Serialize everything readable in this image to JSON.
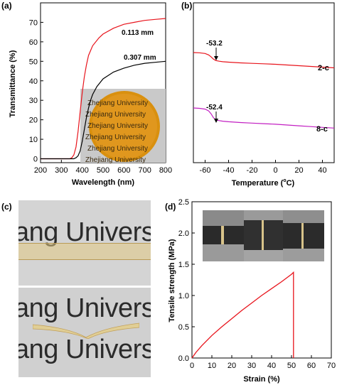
{
  "panels": {
    "a": {
      "label": "(a)",
      "xlabel": "Wavelength (nm)",
      "ylabel": "Transmittance (%)",
      "xticks": [
        "200",
        "300",
        "400",
        "500",
        "600",
        "700",
        "800"
      ],
      "yticks": [
        "0",
        "10",
        "20",
        "30",
        "40",
        "50",
        "60",
        "70"
      ],
      "series_labels": [
        "0.113 mm",
        "0.307 mm"
      ],
      "inset_text": [
        "Zhejiang University",
        "Zhejiang University",
        "Zhejiang University",
        "Zhejiang University",
        "Zhejiang University",
        "Zhejiang University"
      ]
    },
    "b": {
      "label": "(b)",
      "xlabel": "Temperature (",
      "xlabel_sup": "o",
      "xlabel_end": "C)",
      "xticks": [
        "-60",
        "-40",
        "-20",
        "0",
        "20",
        "40"
      ],
      "annotations": [
        "-53.2",
        "-52.4"
      ],
      "series_labels": [
        "2-c",
        "8-c"
      ]
    },
    "c": {
      "label": "(c)",
      "photo_text": [
        "ang Univers",
        "ang Univers",
        "ang Univers"
      ]
    },
    "d": {
      "label": "(d)",
      "xlabel": "Strain (%)",
      "ylabel": "Tensile strength (MPa)",
      "xticks": [
        "0",
        "10",
        "20",
        "30",
        "40",
        "50",
        "60",
        "70"
      ],
      "yticks": [
        "0.0",
        "0.5",
        "1.0",
        "1.5",
        "2.0",
        "2.5"
      ]
    }
  },
  "colors": {
    "red": "#e8141c",
    "black": "#000000",
    "magenta": "#c21fc2",
    "inset_amber": "#d9900f"
  },
  "chart_data": [
    {
      "type": "line",
      "panel": "a",
      "xlabel": "Wavelength (nm)",
      "ylabel": "Transmittance (%)",
      "xlim": [
        200,
        800
      ],
      "ylim": [
        -2,
        80
      ],
      "series": [
        {
          "name": "0.113 mm",
          "color": "#e8141c",
          "x": [
            200,
            340,
            350,
            360,
            370,
            380,
            390,
            400,
            410,
            420,
            430,
            450,
            480,
            500,
            550,
            600,
            650,
            700,
            750,
            800
          ],
          "y": [
            0,
            0,
            0.5,
            2,
            6,
            14,
            24,
            34,
            42,
            48,
            53,
            58,
            62,
            64,
            67,
            69,
            70,
            71,
            71.5,
            72
          ]
        },
        {
          "name": "0.307 mm",
          "color": "#000000",
          "x": [
            200,
            360,
            370,
            380,
            390,
            400,
            410,
            420,
            430,
            440,
            450,
            470,
            500,
            550,
            600,
            650,
            700,
            750,
            800
          ],
          "y": [
            0,
            0,
            0.5,
            1.5,
            4,
            9,
            15,
            21,
            26,
            30,
            33,
            37,
            41,
            44.5,
            46.5,
            48,
            49,
            49.5,
            50
          ]
        }
      ]
    },
    {
      "type": "line",
      "panel": "b",
      "xlabel": "Temperature (oC)",
      "xlim": [
        -70,
        50
      ],
      "annotations": [
        {
          "text": "-53.2",
          "x": -53.2,
          "series": "2-c"
        },
        {
          "text": "-52.4",
          "x": -52.4,
          "series": "8-c"
        }
      ],
      "series": [
        {
          "name": "2-c",
          "color": "#e8141c",
          "x": [
            -70,
            -65,
            -60,
            -57,
            -55,
            -53,
            -51,
            -48,
            -45,
            -40,
            -30,
            -20,
            -10,
            0,
            10,
            20,
            30,
            40,
            50
          ],
          "y": [
            0,
            -0.1,
            -0.4,
            -1.0,
            -1.8,
            -2.8,
            -3.4,
            -3.7,
            -3.9,
            -4.1,
            -4.4,
            -4.6,
            -4.8,
            -5.0,
            -5.3,
            -5.6,
            -5.9,
            -6.2,
            -6.5
          ]
        },
        {
          "name": "8-c",
          "color": "#c21fc2",
          "x": [
            -70,
            -65,
            -60,
            -57,
            -55,
            -53,
            -51,
            -48,
            -45,
            -40,
            -30,
            -20,
            -10,
            0,
            10,
            20,
            30,
            40,
            50
          ],
          "y": [
            -30,
            -30.2,
            -30.6,
            -31.5,
            -33.0,
            -35.0,
            -36.2,
            -36.6,
            -36.9,
            -37.2,
            -37.6,
            -37.9,
            -38.2,
            -38.5,
            -38.9,
            -39.3,
            -39.7,
            -40.1,
            -40.5
          ]
        }
      ]
    },
    {
      "type": "line",
      "panel": "d",
      "xlabel": "Strain (%)",
      "ylabel": "Tensile strength (MPa)",
      "xlim": [
        0,
        70
      ],
      "ylim": [
        0,
        2.5
      ],
      "series": [
        {
          "name": "",
          "color": "#e8141c",
          "x": [
            0,
            2,
            5,
            10,
            15,
            20,
            25,
            30,
            35,
            40,
            45,
            50,
            51,
            51,
            51
          ],
          "y": [
            0,
            0.09,
            0.2,
            0.36,
            0.5,
            0.63,
            0.76,
            0.88,
            1.0,
            1.11,
            1.22,
            1.34,
            1.37,
            0.6,
            0
          ]
        }
      ]
    }
  ]
}
